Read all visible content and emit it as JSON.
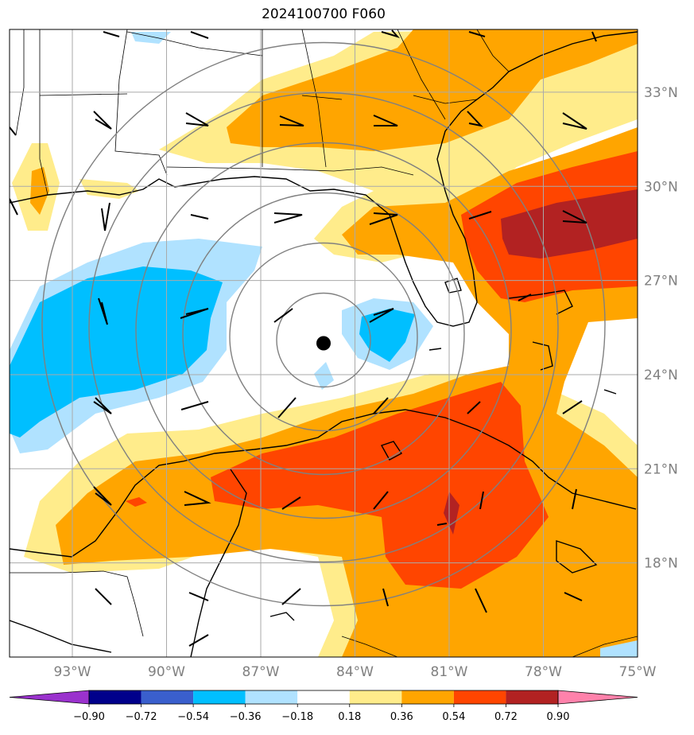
{
  "title": "2024100700 F060",
  "map": {
    "lon_range": [
      -95,
      -75
    ],
    "lat_range": [
      15,
      35
    ],
    "lat_ticks": [
      {
        "value": 18,
        "label": "18°N"
      },
      {
        "value": 21,
        "label": "21°N"
      },
      {
        "value": 24,
        "label": "24°N"
      },
      {
        "value": 27,
        "label": "27°N"
      },
      {
        "value": 30,
        "label": "30°N"
      },
      {
        "value": 33,
        "label": "33°N"
      }
    ],
    "lon_ticks": [
      {
        "value": -93,
        "label": "93°W"
      },
      {
        "value": -90,
        "label": "90°W"
      },
      {
        "value": -87,
        "label": "87°W"
      },
      {
        "value": -84,
        "label": "84°W"
      },
      {
        "value": -81,
        "label": "81°W"
      },
      {
        "value": -78,
        "label": "78°W"
      },
      {
        "value": -75,
        "label": "75°W"
      }
    ],
    "storm_center": {
      "lon": -85.0,
      "lat": 25.0
    },
    "range_ring_count": 6,
    "gridline_color": "#aaaaaa",
    "ring_color": "#808080"
  },
  "colorbar": {
    "levels": [
      "−0.90",
      "−0.72",
      "−0.54",
      "−0.36",
      "−0.18",
      "0.18",
      "0.36",
      "0.54",
      "0.72",
      "0.90"
    ],
    "colors": [
      "#9a32cd",
      "#00008b",
      "#3a5fcd",
      "#00bfff",
      "#b0e2ff",
      "#ffffff",
      "#ffec8b",
      "#ffa500",
      "#ff4500",
      "#b22222",
      "#ff82ab"
    ]
  }
}
